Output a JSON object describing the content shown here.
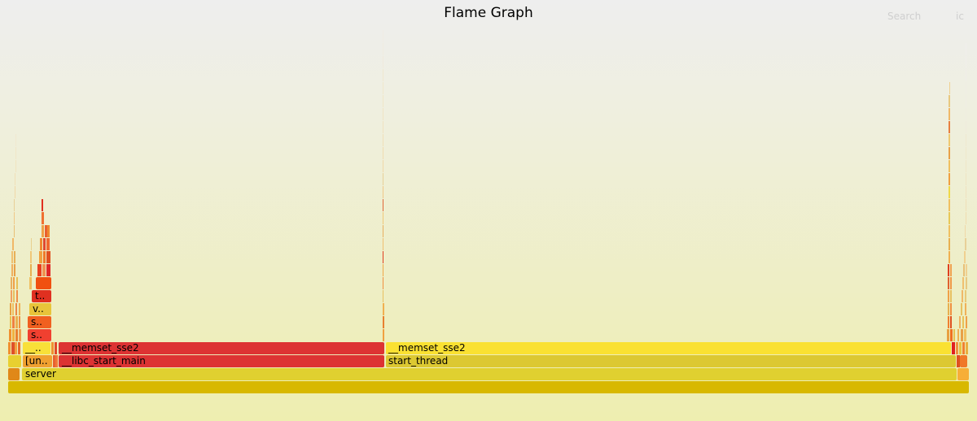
{
  "header": {
    "title": "Flame Graph",
    "search_label": "Search",
    "ic_label": "ic"
  },
  "frames": {
    "root": "",
    "server": "server",
    "unknown_short": "[un..",
    "libc_start_main": "__libc_start_main",
    "start_thread": "start_thread",
    "memset_left": "__memset_sse2",
    "memset_right": "__memset_sse2",
    "memset_short": "__..",
    "s_short_1": "s..",
    "s_short_2": "s..",
    "v_short": "v..",
    "t_short": "t.."
  },
  "colors": {
    "bg_top": "#eeeeee",
    "bg_bottom": "#eeeeb0",
    "root": "#d8b800",
    "server": "#e0d030",
    "libc": "#dd3333",
    "start_thread": "#dcc832",
    "memset_left": "#dd3333",
    "memset_right": "#fae132",
    "orange": "#f07020",
    "red": "#e03828",
    "yellow": "#e8c43a"
  }
}
